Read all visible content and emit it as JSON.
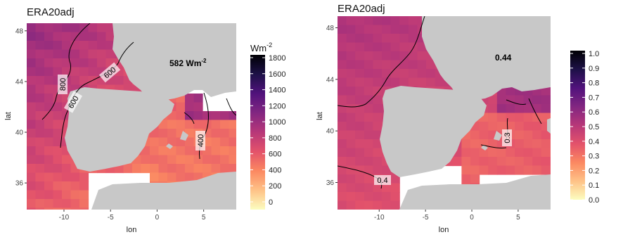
{
  "panels": [
    {
      "title": "ERA20adj",
      "xlabel": "lon",
      "ylabel": "lat",
      "x_ticks": [
        -10,
        -5,
        0,
        5
      ],
      "y_ticks": [
        36,
        40,
        44,
        48
      ],
      "annotation_value": "582",
      "annotation_unit": "Wm",
      "annotation_exp": "-2",
      "contour_labels": [
        "800",
        "600",
        "600",
        "400"
      ],
      "legend": {
        "title_base": "Wm",
        "title_exp": "-2",
        "min": 0,
        "max": 1800,
        "ticks": [
          0,
          200,
          400,
          600,
          800,
          1000,
          1200,
          1400,
          1600,
          1800
        ]
      }
    },
    {
      "title": "ERA20adj",
      "xlabel": "lon",
      "ylabel": "lat",
      "x_ticks": [
        -10,
        -5,
        0,
        5
      ],
      "y_ticks": [
        36,
        40,
        44,
        48
      ],
      "annotation_value": "0.44",
      "contour_labels": [
        "0.4",
        "0.3"
      ],
      "legend": {
        "title_base": "",
        "min": 0,
        "max": 1.0,
        "ticks": [
          "0.0",
          "0.1",
          "0.2",
          "0.3",
          "0.4",
          "0.5",
          "0.6",
          "0.7",
          "0.8",
          "0.9",
          "1.0"
        ]
      }
    }
  ],
  "colormap": [
    "#fcfdbf",
    "#fec287",
    "#fb8861",
    "#e3526b",
    "#b73779",
    "#822681",
    "#51127c",
    "#1d1147",
    "#000004"
  ]
}
